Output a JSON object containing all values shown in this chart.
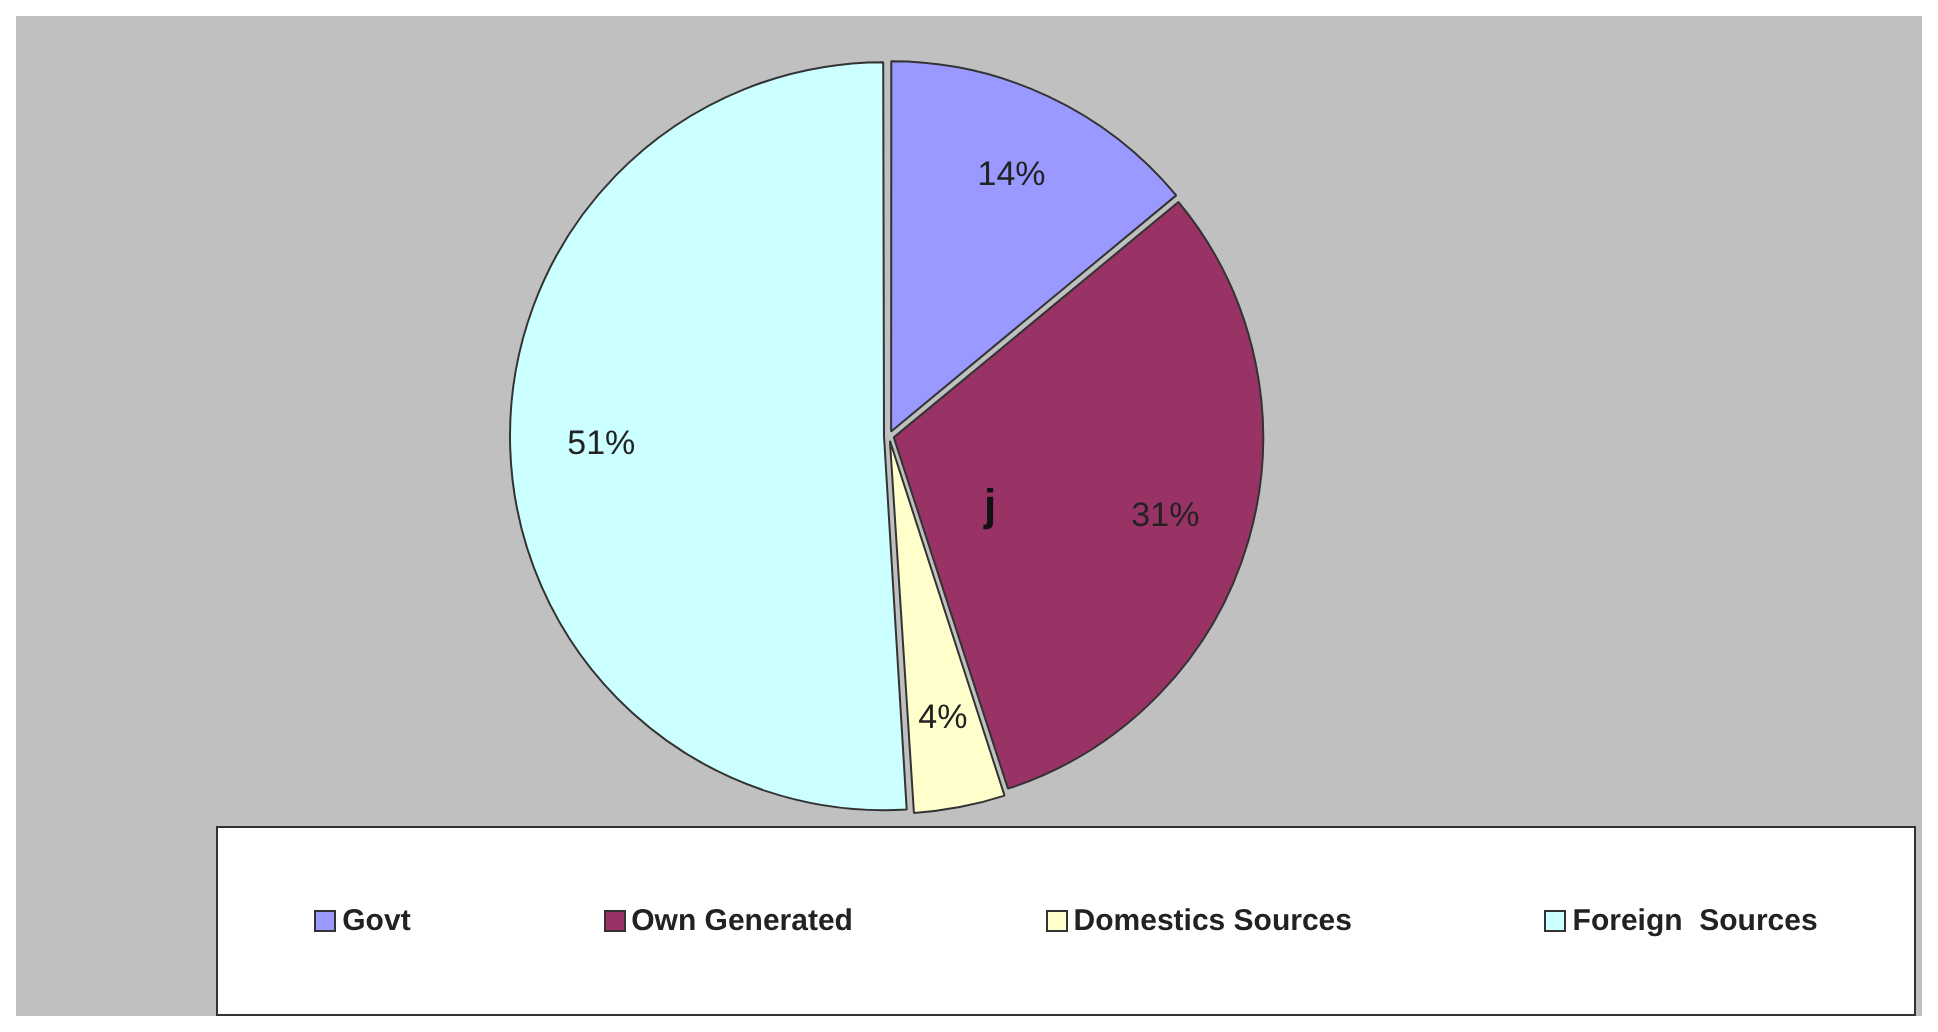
{
  "chart_data": {
    "type": "pie",
    "categories": [
      "Govt",
      "Own Generated",
      "Domestics Sources",
      "Foreign  Sources"
    ],
    "values": [
      14,
      31,
      4,
      51
    ],
    "colors": [
      "#9999ff",
      "#993366",
      "#ffffcc",
      "#ccffff"
    ],
    "value_labels": [
      "14%",
      "31%",
      "4%",
      "51%"
    ],
    "annotations": [
      "j"
    ],
    "legend": "bottom"
  }
}
